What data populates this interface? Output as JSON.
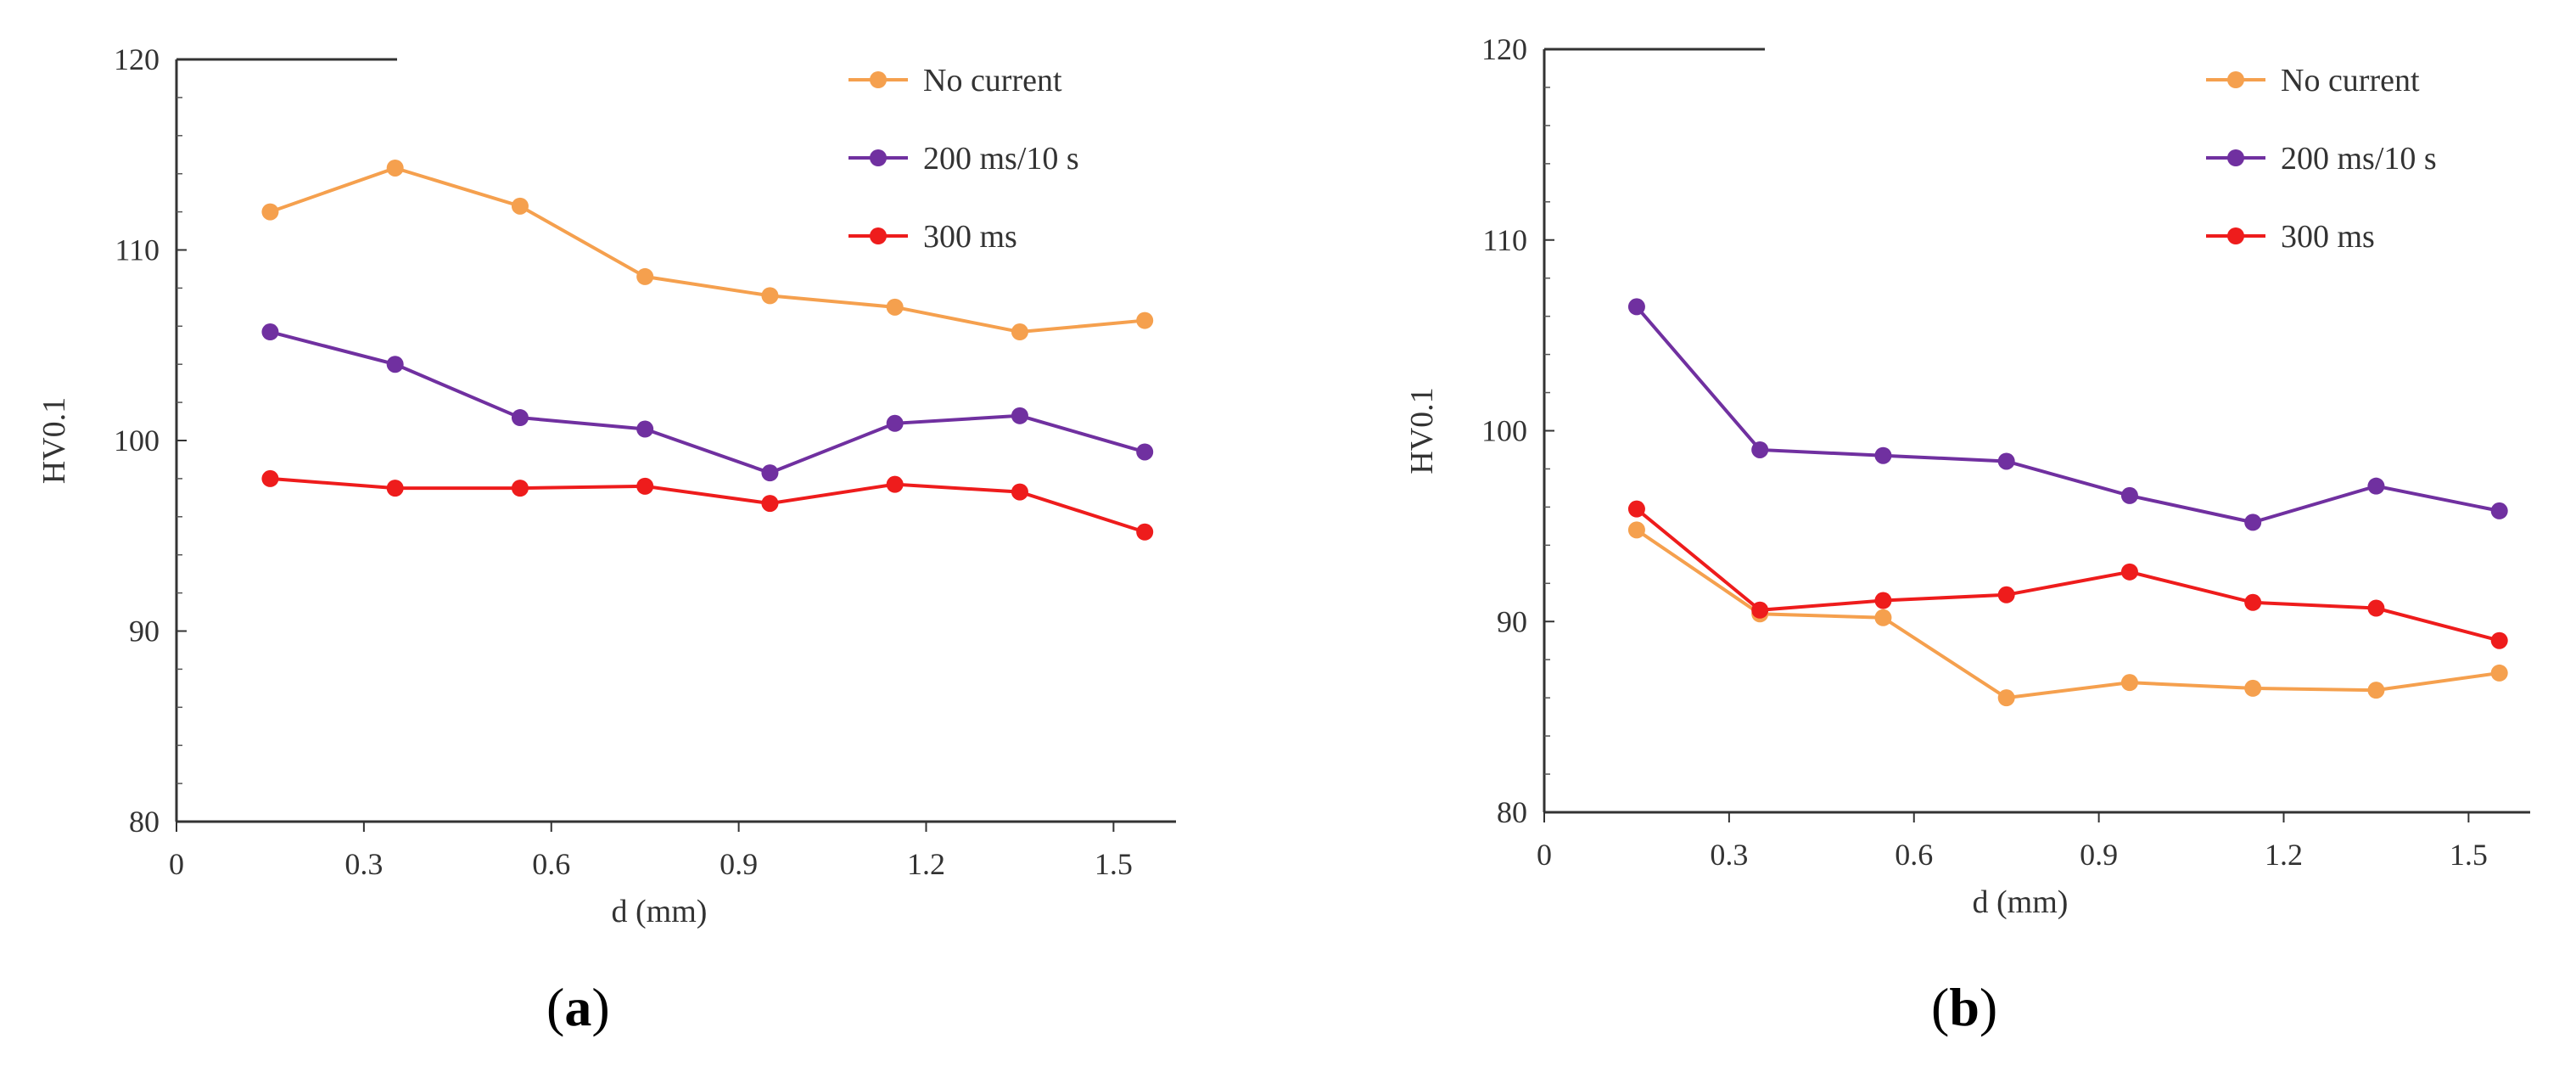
{
  "chart_data": [
    {
      "type": "line",
      "panel_label": "a",
      "xlabel": "d (mm)",
      "ylabel": "HV0.1",
      "xlim": [
        0,
        1.6
      ],
      "ylim": [
        80,
        120
      ],
      "xticks": [
        0,
        0.3,
        0.6,
        0.9,
        1.2,
        1.5
      ],
      "xtick_labels": [
        "0",
        "0.3",
        "0.6",
        "0.9",
        "1.2",
        "1.5"
      ],
      "yticks": [
        80,
        90,
        100,
        110,
        120
      ],
      "ytick_labels": [
        "80",
        "90",
        "100",
        "110",
        "120"
      ],
      "legend_position": "top-right",
      "x": [
        0.15,
        0.35,
        0.55,
        0.75,
        0.95,
        1.15,
        1.35,
        1.55
      ],
      "series": [
        {
          "name": "No current",
          "color": "#F5A04E",
          "values": [
            112.0,
            114.3,
            112.3,
            108.6,
            107.6,
            107.0,
            105.7,
            106.3
          ]
        },
        {
          "name": "200 ms/10 s",
          "color": "#7030A0",
          "values": [
            105.7,
            104.0,
            101.2,
            100.6,
            98.3,
            100.9,
            101.3,
            99.4
          ]
        },
        {
          "name": "300 ms",
          "color": "#EE1C1C",
          "values": [
            98.0,
            97.5,
            97.5,
            97.6,
            96.7,
            97.7,
            97.3,
            95.2
          ]
        }
      ]
    },
    {
      "type": "line",
      "panel_label": "b",
      "xlabel": "d (mm)",
      "ylabel": "HV0.1",
      "xlim": [
        0,
        1.6
      ],
      "ylim": [
        80,
        120
      ],
      "xticks": [
        0,
        0.3,
        0.6,
        0.9,
        1.2,
        1.5
      ],
      "xtick_labels": [
        "0",
        "0.3",
        "0.6",
        "0.9",
        "1.2",
        "1.5"
      ],
      "yticks": [
        80,
        90,
        100,
        110,
        120
      ],
      "ytick_labels": [
        "80",
        "90",
        "100",
        "110",
        "120"
      ],
      "legend_position": "top-right",
      "x": [
        0.15,
        0.35,
        0.55,
        0.75,
        0.95,
        1.15,
        1.35,
        1.55
      ],
      "series": [
        {
          "name": "No current",
          "color": "#F5A04E",
          "values": [
            94.8,
            90.4,
            90.2,
            86.0,
            86.8,
            86.5,
            86.4,
            87.3
          ]
        },
        {
          "name": "200 ms/10 s",
          "color": "#7030A0",
          "values": [
            106.5,
            99.0,
            98.7,
            98.4,
            96.6,
            95.2,
            97.1,
            95.8
          ]
        },
        {
          "name": "300 ms",
          "color": "#EE1C1C",
          "values": [
            95.9,
            90.6,
            91.1,
            91.4,
            92.6,
            91.0,
            90.7,
            89.0
          ]
        }
      ]
    }
  ]
}
